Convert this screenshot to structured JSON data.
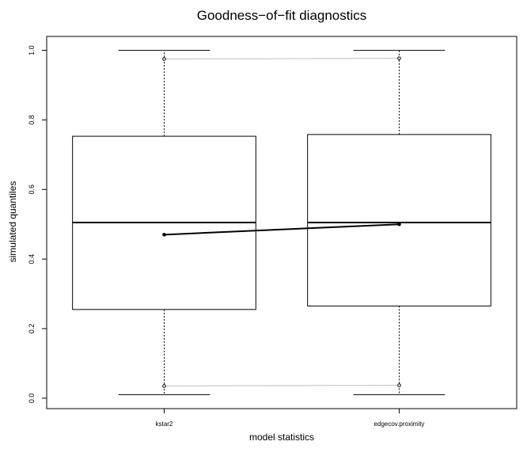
{
  "chart_data": {
    "type": "box",
    "title": "Goodness−of−fit diagnostics",
    "xlabel": "model statistics",
    "ylabel": "simulated quantiles",
    "ylim": [
      -0.03,
      1.04
    ],
    "yticks": [
      "0.0",
      "0.2",
      "0.4",
      "0.6",
      "0.8",
      "1.0"
    ],
    "categories": [
      "kstar2",
      "edgecov.proximity"
    ],
    "boxes": [
      {
        "category": "kstar2",
        "whisker_low": 0.01,
        "q1": 0.255,
        "median": 0.505,
        "q3": 0.753,
        "whisker_high": 1.0
      },
      {
        "category": "edgecov.proximity",
        "whisker_low": 0.01,
        "q1": 0.265,
        "median": 0.505,
        "q3": 0.758,
        "whisker_high": 1.0
      }
    ],
    "observed": [
      0.47,
      0.5
    ],
    "upper_interval": [
      0.975,
      0.977
    ],
    "lower_interval": [
      0.035,
      0.037
    ],
    "colors": {
      "observed_line": "#000000",
      "interval_line": "#bebebe"
    }
  }
}
